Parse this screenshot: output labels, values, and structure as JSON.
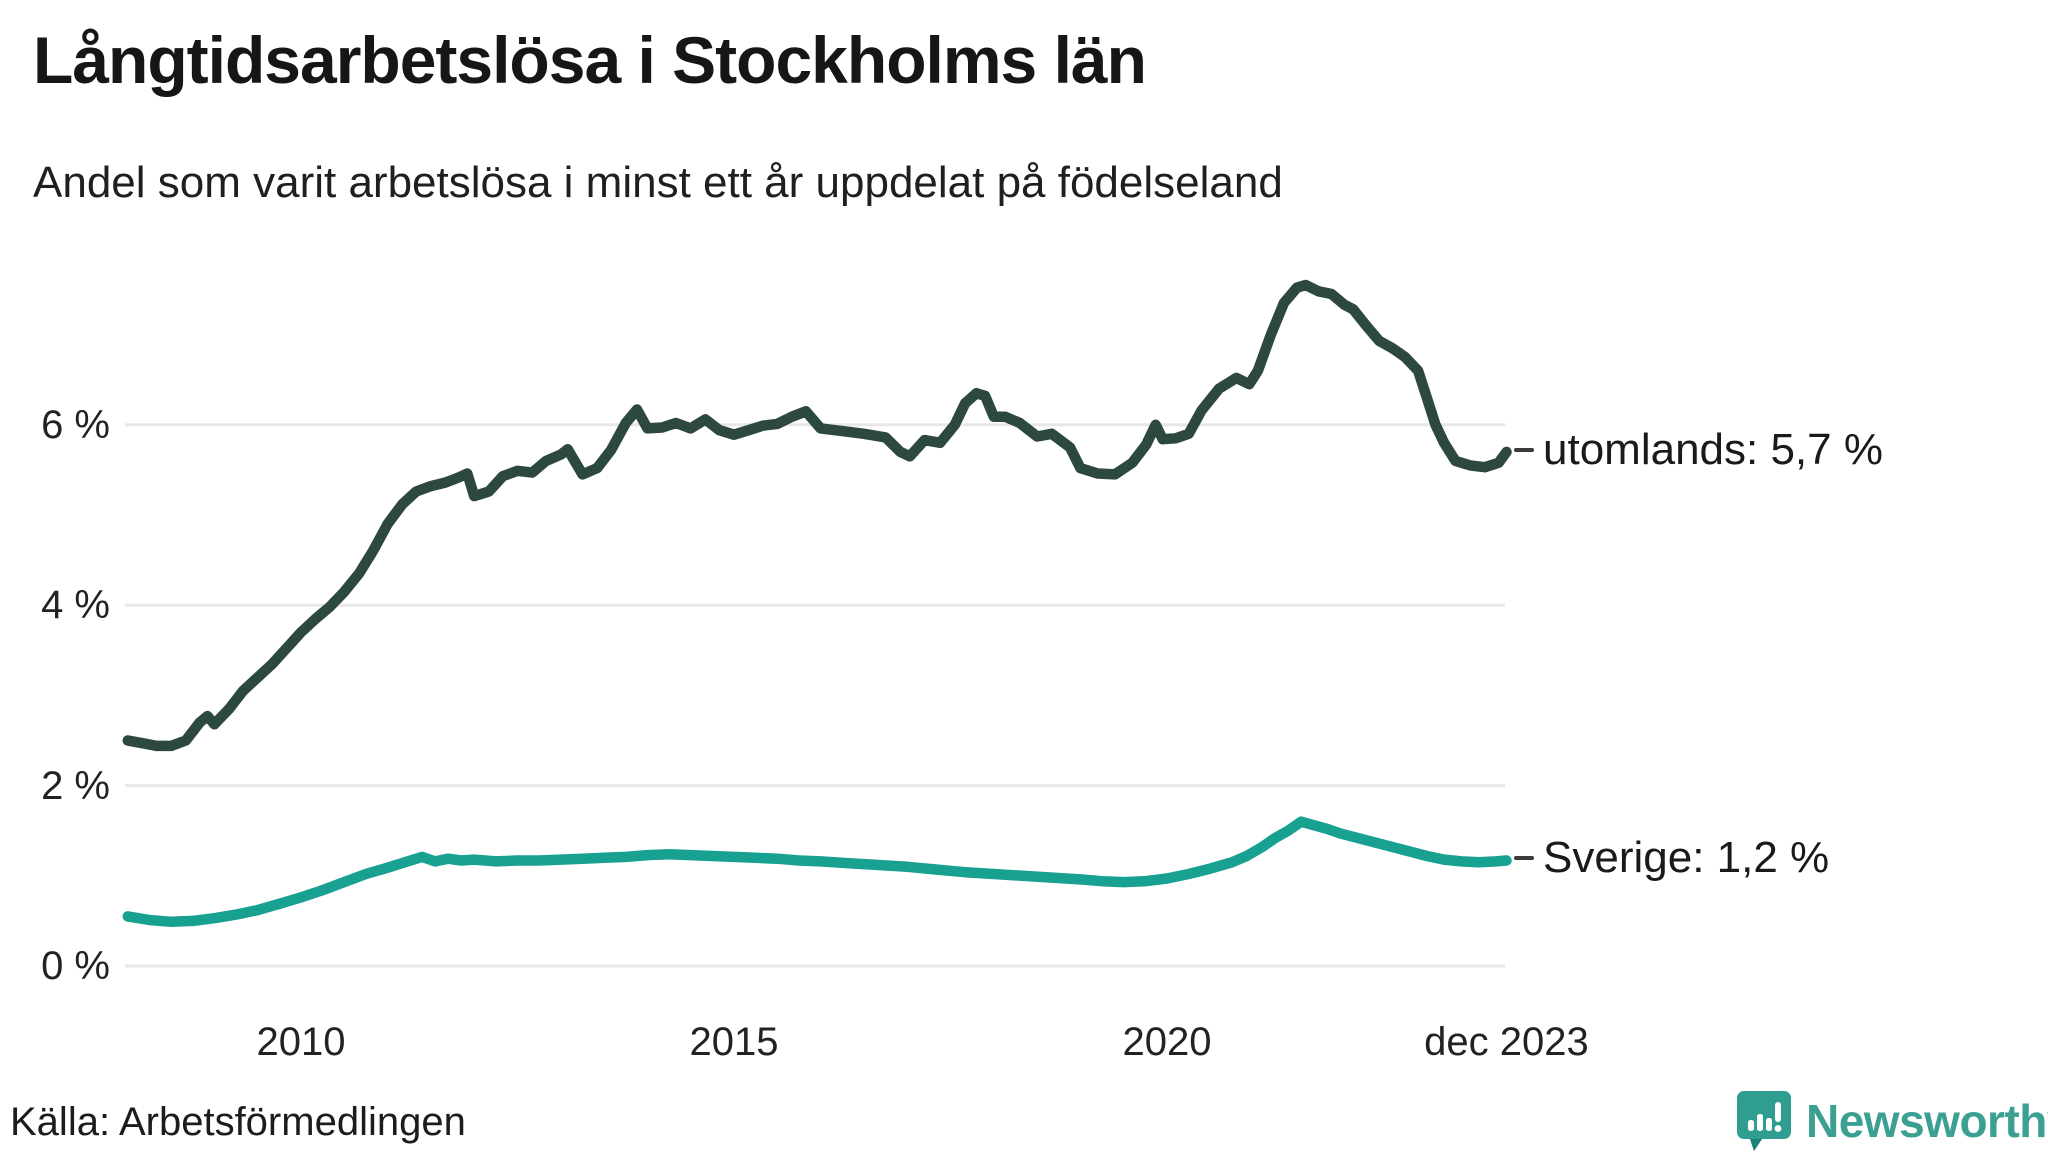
{
  "title": "Långtidsarbetslösa i Stockholms län",
  "subtitle": "Andel som varit arbetslösa i minst ett år uppdelat på födelseland",
  "source": "Källa: Arbetsförmedlingen",
  "logo": {
    "text": "Newsworthy",
    "icon": "newsworthy-speech-bubble-chart-icon",
    "color": "#3ba092"
  },
  "colors": {
    "series_utomlands": "#2d4840",
    "series_sverige": "#18a191",
    "gridline": "#e7e7ea",
    "text": "#1a1a1a"
  },
  "chart_data": {
    "type": "line",
    "title": "Långtidsarbetslösa i Stockholms län",
    "subtitle": "Andel som varit arbetslösa i minst ett år uppdelat på födelseland",
    "unit": "%",
    "grid": true,
    "legend_position": "end-of-line-labels-right",
    "x_axis": {
      "range_years": [
        2008.0,
        2023.95
      ],
      "ticks": [
        {
          "label": "2010",
          "year": 2010.0
        },
        {
          "label": "2015",
          "year": 2015.0
        },
        {
          "label": "2020",
          "year": 2020.0
        },
        {
          "label": "dec 2023",
          "year": 2023.92
        }
      ]
    },
    "y_axis": {
      "range": [
        0,
        7.9
      ],
      "ticks": [
        {
          "label": "0 %",
          "value": 0
        },
        {
          "label": "2 %",
          "value": 2
        },
        {
          "label": "4 %",
          "value": 4
        },
        {
          "label": "6 %",
          "value": 6
        }
      ]
    },
    "series": [
      {
        "name": "utomlands",
        "end_label": "utomlands: 5,7 %",
        "last_value_text": "5,7 %",
        "color": "#2d4840",
        "points": [
          [
            2008.0,
            2.5
          ],
          [
            2008.17,
            2.47
          ],
          [
            2008.33,
            2.44
          ],
          [
            2008.5,
            2.44
          ],
          [
            2008.67,
            2.5
          ],
          [
            2008.83,
            2.7
          ],
          [
            2008.92,
            2.77
          ],
          [
            2009.0,
            2.68
          ],
          [
            2009.17,
            2.85
          ],
          [
            2009.33,
            3.05
          ],
          [
            2009.5,
            3.2
          ],
          [
            2009.67,
            3.35
          ],
          [
            2009.83,
            3.52
          ],
          [
            2010.0,
            3.7
          ],
          [
            2010.17,
            3.85
          ],
          [
            2010.33,
            3.98
          ],
          [
            2010.5,
            4.15
          ],
          [
            2010.67,
            4.35
          ],
          [
            2010.83,
            4.6
          ],
          [
            2011.0,
            4.9
          ],
          [
            2011.17,
            5.12
          ],
          [
            2011.33,
            5.26
          ],
          [
            2011.5,
            5.32
          ],
          [
            2011.67,
            5.36
          ],
          [
            2011.83,
            5.42
          ],
          [
            2011.92,
            5.46
          ],
          [
            2012.0,
            5.21
          ],
          [
            2012.17,
            5.26
          ],
          [
            2012.33,
            5.43
          ],
          [
            2012.5,
            5.49
          ],
          [
            2012.67,
            5.47
          ],
          [
            2012.83,
            5.6
          ],
          [
            2013.0,
            5.67
          ],
          [
            2013.08,
            5.73
          ],
          [
            2013.25,
            5.45
          ],
          [
            2013.42,
            5.52
          ],
          [
            2013.58,
            5.72
          ],
          [
            2013.75,
            6.02
          ],
          [
            2013.88,
            6.17
          ],
          [
            2014.0,
            5.96
          ],
          [
            2014.17,
            5.97
          ],
          [
            2014.33,
            6.02
          ],
          [
            2014.5,
            5.96
          ],
          [
            2014.67,
            6.06
          ],
          [
            2014.83,
            5.94
          ],
          [
            2015.0,
            5.89
          ],
          [
            2015.17,
            5.94
          ],
          [
            2015.33,
            5.99
          ],
          [
            2015.5,
            6.01
          ],
          [
            2015.67,
            6.09
          ],
          [
            2015.83,
            6.15
          ],
          [
            2016.0,
            5.96
          ],
          [
            2016.25,
            5.93
          ],
          [
            2016.5,
            5.9
          ],
          [
            2016.75,
            5.86
          ],
          [
            2016.92,
            5.7
          ],
          [
            2017.03,
            5.65
          ],
          [
            2017.2,
            5.83
          ],
          [
            2017.38,
            5.8
          ],
          [
            2017.55,
            6.0
          ],
          [
            2017.67,
            6.24
          ],
          [
            2017.8,
            6.35
          ],
          [
            2017.9,
            6.32
          ],
          [
            2018.0,
            6.09
          ],
          [
            2018.13,
            6.09
          ],
          [
            2018.3,
            6.02
          ],
          [
            2018.5,
            5.87
          ],
          [
            2018.67,
            5.9
          ],
          [
            2018.88,
            5.75
          ],
          [
            2019.0,
            5.52
          ],
          [
            2019.2,
            5.46
          ],
          [
            2019.4,
            5.45
          ],
          [
            2019.6,
            5.58
          ],
          [
            2019.76,
            5.78
          ],
          [
            2019.87,
            6.0
          ],
          [
            2019.95,
            5.84
          ],
          [
            2020.1,
            5.85
          ],
          [
            2020.25,
            5.9
          ],
          [
            2020.4,
            6.16
          ],
          [
            2020.6,
            6.4
          ],
          [
            2020.8,
            6.52
          ],
          [
            2020.95,
            6.45
          ],
          [
            2021.05,
            6.6
          ],
          [
            2021.2,
            7.0
          ],
          [
            2021.35,
            7.35
          ],
          [
            2021.5,
            7.52
          ],
          [
            2021.6,
            7.55
          ],
          [
            2021.75,
            7.48
          ],
          [
            2021.9,
            7.45
          ],
          [
            2022.05,
            7.33
          ],
          [
            2022.15,
            7.28
          ],
          [
            2022.3,
            7.1
          ],
          [
            2022.45,
            6.93
          ],
          [
            2022.6,
            6.85
          ],
          [
            2022.75,
            6.75
          ],
          [
            2022.9,
            6.6
          ],
          [
            2023.0,
            6.3
          ],
          [
            2023.1,
            6.0
          ],
          [
            2023.2,
            5.8
          ],
          [
            2023.33,
            5.6
          ],
          [
            2023.5,
            5.55
          ],
          [
            2023.67,
            5.53
          ],
          [
            2023.83,
            5.58
          ],
          [
            2023.92,
            5.7
          ]
        ]
      },
      {
        "name": "Sverige",
        "end_label": "Sverige: 1,2 %",
        "last_value_text": "1,2 %",
        "color": "#18a191",
        "points": [
          [
            2008.0,
            0.55
          ],
          [
            2008.25,
            0.51
          ],
          [
            2008.5,
            0.49
          ],
          [
            2008.75,
            0.5
          ],
          [
            2009.0,
            0.53
          ],
          [
            2009.25,
            0.57
          ],
          [
            2009.5,
            0.62
          ],
          [
            2009.75,
            0.69
          ],
          [
            2010.0,
            0.76
          ],
          [
            2010.25,
            0.84
          ],
          [
            2010.5,
            0.93
          ],
          [
            2010.75,
            1.02
          ],
          [
            2011.0,
            1.09
          ],
          [
            2011.2,
            1.15
          ],
          [
            2011.4,
            1.21
          ],
          [
            2011.55,
            1.16
          ],
          [
            2011.7,
            1.19
          ],
          [
            2011.85,
            1.17
          ],
          [
            2012.0,
            1.18
          ],
          [
            2012.25,
            1.16
          ],
          [
            2012.5,
            1.17
          ],
          [
            2012.75,
            1.17
          ],
          [
            2013.0,
            1.18
          ],
          [
            2013.25,
            1.19
          ],
          [
            2013.5,
            1.2
          ],
          [
            2013.75,
            1.21
          ],
          [
            2014.0,
            1.23
          ],
          [
            2014.25,
            1.24
          ],
          [
            2014.5,
            1.23
          ],
          [
            2014.75,
            1.22
          ],
          [
            2015.0,
            1.21
          ],
          [
            2015.25,
            1.2
          ],
          [
            2015.5,
            1.19
          ],
          [
            2015.75,
            1.17
          ],
          [
            2016.0,
            1.16
          ],
          [
            2016.33,
            1.14
          ],
          [
            2016.67,
            1.12
          ],
          [
            2017.0,
            1.1
          ],
          [
            2017.33,
            1.07
          ],
          [
            2017.67,
            1.04
          ],
          [
            2018.0,
            1.02
          ],
          [
            2018.33,
            1.0
          ],
          [
            2018.67,
            0.98
          ],
          [
            2019.0,
            0.96
          ],
          [
            2019.25,
            0.94
          ],
          [
            2019.5,
            0.93
          ],
          [
            2019.75,
            0.94
          ],
          [
            2020.0,
            0.97
          ],
          [
            2020.25,
            1.02
          ],
          [
            2020.5,
            1.08
          ],
          [
            2020.75,
            1.15
          ],
          [
            2020.92,
            1.22
          ],
          [
            2021.1,
            1.32
          ],
          [
            2021.25,
            1.42
          ],
          [
            2021.4,
            1.5
          ],
          [
            2021.55,
            1.6
          ],
          [
            2021.7,
            1.56
          ],
          [
            2021.85,
            1.52
          ],
          [
            2022.0,
            1.47
          ],
          [
            2022.2,
            1.42
          ],
          [
            2022.4,
            1.37
          ],
          [
            2022.6,
            1.32
          ],
          [
            2022.8,
            1.27
          ],
          [
            2023.0,
            1.22
          ],
          [
            2023.2,
            1.18
          ],
          [
            2023.4,
            1.16
          ],
          [
            2023.6,
            1.15
          ],
          [
            2023.8,
            1.16
          ],
          [
            2023.92,
            1.17
          ]
        ]
      }
    ]
  }
}
